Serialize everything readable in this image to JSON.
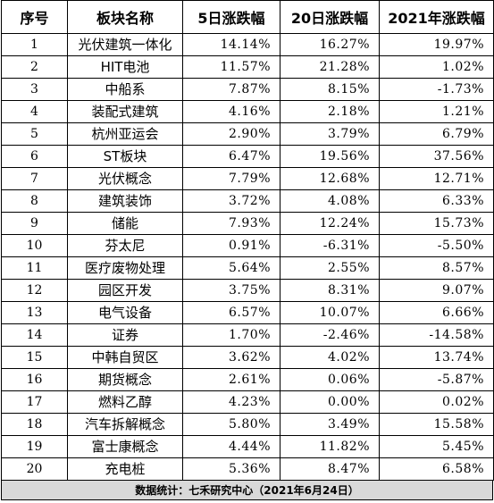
{
  "table": {
    "headers": [
      "序号",
      "板块名称",
      "5日涨跌幅",
      "20日涨跌幅",
      "2021年涨跌幅"
    ],
    "rows": [
      [
        "1",
        "光伏建筑一体化",
        "14.14%",
        "16.27%",
        "19.97%"
      ],
      [
        "2",
        "HIT电池",
        "11.57%",
        "21.28%",
        "1.02%"
      ],
      [
        "3",
        "中船系",
        "7.87%",
        "8.15%",
        "-1.73%"
      ],
      [
        "4",
        "装配式建筑",
        "4.16%",
        "2.18%",
        "1.21%"
      ],
      [
        "5",
        "杭州亚运会",
        "2.90%",
        "3.79%",
        "6.79%"
      ],
      [
        "6",
        "ST板块",
        "6.47%",
        "19.56%",
        "37.56%"
      ],
      [
        "7",
        "光伏概念",
        "7.79%",
        "12.68%",
        "12.71%"
      ],
      [
        "8",
        "建筑装饰",
        "3.72%",
        "4.08%",
        "6.33%"
      ],
      [
        "9",
        "储能",
        "7.93%",
        "12.24%",
        "15.73%"
      ],
      [
        "10",
        "芬太尼",
        "0.91%",
        "-6.31%",
        "-5.50%"
      ],
      [
        "11",
        "医疗废物处理",
        "5.64%",
        "2.55%",
        "8.57%"
      ],
      [
        "12",
        "园区开发",
        "3.75%",
        "8.31%",
        "9.07%"
      ],
      [
        "13",
        "电气设备",
        "6.57%",
        "10.07%",
        "6.66%"
      ],
      [
        "14",
        "证券",
        "1.70%",
        "-2.46%",
        "-14.58%"
      ],
      [
        "15",
        "中韩自贸区",
        "3.62%",
        "4.02%",
        "13.74%"
      ],
      [
        "16",
        "期货概念",
        "2.61%",
        "0.06%",
        "-5.87%"
      ],
      [
        "17",
        "燃料乙醇",
        "4.23%",
        "0.00%",
        "0.02%"
      ],
      [
        "18",
        "汽车拆解概念",
        "5.80%",
        "3.49%",
        "15.58%"
      ],
      [
        "19",
        "富士康概念",
        "4.44%",
        "11.82%",
        "5.45%"
      ],
      [
        "20",
        "充电桩",
        "5.36%",
        "8.47%",
        "6.58%"
      ]
    ]
  },
  "footer": {
    "text": "数据统计：七禾研究中心（2021年6月24日）"
  },
  "colors": {
    "footer_bg": "#d9d9d9",
    "border": "#000000"
  }
}
